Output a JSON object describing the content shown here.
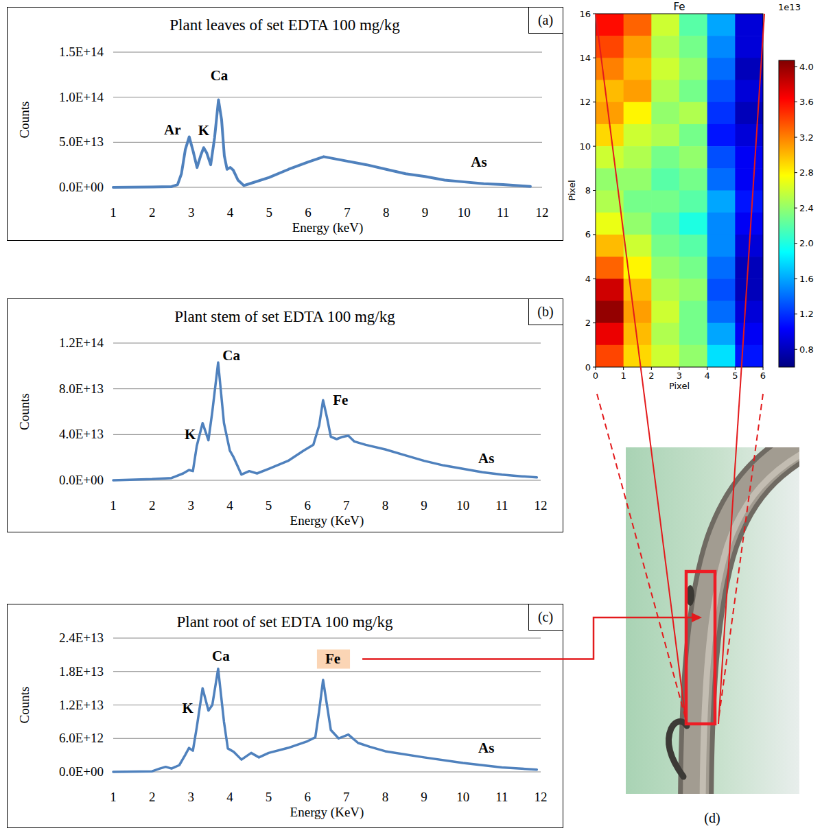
{
  "chart_data": [
    {
      "type": "line",
      "title": "Plant leaves of set EDTA 100 mg/kg",
      "panel": "(a)",
      "x_label": "Energy (keV)",
      "y_label": "Counts",
      "color": "#4f81bd",
      "grid": true,
      "x": [
        1,
        1.5,
        2,
        2.5,
        2.65,
        2.75,
        2.85,
        2.95,
        3.05,
        3.15,
        3.25,
        3.32,
        3.4,
        3.5,
        3.6,
        3.7,
        3.78,
        3.85,
        3.92,
        4.0,
        4.08,
        4.2,
        4.35,
        4.5,
        5,
        5.5,
        6,
        6.4,
        7,
        7.5,
        8,
        8.5,
        9,
        9.5,
        10,
        10.5,
        11,
        11.5,
        11.7
      ],
      "values": [
        0,
        100000000000.0,
        300000000000.0,
        800000000000.0,
        3000000000000.0,
        15000000000000.0,
        42000000000000.0,
        56000000000000.0,
        40000000000000.0,
        22000000000000.0,
        36000000000000.0,
        44000000000000.0,
        38000000000000.0,
        25000000000000.0,
        55000000000000.0,
        97000000000000.0,
        75000000000000.0,
        35000000000000.0,
        20000000000000.0,
        22000000000000.0,
        19000000000000.0,
        8000000000000.0,
        2000000000000.0,
        4000000000000.0,
        11000000000000.0,
        20000000000000.0,
        28000000000000.0,
        34000000000000.0,
        29000000000000.0,
        25000000000000.0,
        20000000000000.0,
        15000000000000.0,
        12000000000000.0,
        8000000000000.0,
        6000000000000.0,
        4000000000000.0,
        3000000000000.0,
        1500000000000.0,
        1000000000000.0
      ],
      "xlim": [
        1,
        12
      ],
      "xticks": [
        1,
        2,
        3,
        4,
        5,
        6,
        7,
        8,
        9,
        10,
        11,
        12
      ],
      "ylim": [
        0,
        150000000000000.0
      ],
      "yticks": [
        {
          "value": 0,
          "label": "0.0E+00"
        },
        {
          "value": 50000000000000.0,
          "label": "5.0E+13"
        },
        {
          "value": 100000000000000.0,
          "label": "1.0E+14"
        },
        {
          "value": 150000000000000.0,
          "label": "1.5E+14"
        }
      ],
      "annotations": [
        {
          "text": "Ar",
          "x": 2.52,
          "y": 59000000000000.0
        },
        {
          "text": "K",
          "x": 3.32,
          "y": 58000000000000.0
        },
        {
          "text": "Ca",
          "x": 3.72,
          "y": 119000000000000.0
        },
        {
          "text": "As",
          "x": 10.38,
          "y": 23000000000000.0
        }
      ]
    },
    {
      "type": "line",
      "title": "Plant stem of set EDTA 100 mg/kg",
      "panel": "(b)",
      "x_label": "Energy (KeV)",
      "y_label": "Counts",
      "color": "#4f81bd",
      "grid": true,
      "x": [
        1,
        2,
        2.5,
        2.8,
        2.95,
        3.05,
        3.15,
        3.3,
        3.45,
        3.55,
        3.7,
        3.85,
        4.0,
        4.1,
        4.3,
        4.5,
        4.7,
        5,
        5.5,
        5.9,
        6.15,
        6.3,
        6.4,
        6.5,
        6.6,
        6.75,
        6.9,
        7.05,
        7.2,
        7.5,
        8,
        8.5,
        9,
        9.5,
        10,
        10.5,
        11,
        11.5,
        11.9
      ],
      "values": [
        0,
        1000000000000.0,
        2000000000000.0,
        6000000000000.0,
        9000000000000.0,
        8000000000000.0,
        30000000000000.0,
        50000000000000.0,
        35000000000000.0,
        60000000000000.0,
        103000000000000.0,
        50000000000000.0,
        26000000000000.0,
        20000000000000.0,
        5000000000000.0,
        8000000000000.0,
        6000000000000.0,
        10000000000000.0,
        17000000000000.0,
        26000000000000.0,
        31000000000000.0,
        48000000000000.0,
        70000000000000.0,
        55000000000000.0,
        38000000000000.0,
        36000000000000.0,
        38000000000000.0,
        39000000000000.0,
        34000000000000.0,
        31000000000000.0,
        27000000000000.0,
        22000000000000.0,
        17000000000000.0,
        13000000000000.0,
        10000000000000.0,
        7000000000000.0,
        5000000000000.0,
        3500000000000.0,
        2500000000000.0
      ],
      "xlim": [
        1,
        12
      ],
      "xticks": [
        1,
        2,
        3,
        4,
        5,
        6,
        7,
        8,
        9,
        10,
        11,
        12
      ],
      "ylim": [
        0,
        120000000000000.0
      ],
      "yticks": [
        {
          "value": 0,
          "label": "0.0E+00"
        },
        {
          "value": 40000000000000.0,
          "label": "4.0E+13"
        },
        {
          "value": 80000000000000.0,
          "label": "8.0E+13"
        },
        {
          "value": 120000000000000.0,
          "label": "1.2E+14"
        }
      ],
      "annotations": [
        {
          "text": "K",
          "x": 2.98,
          "y": 36000000000000.0
        },
        {
          "text": "Ca",
          "x": 4.04,
          "y": 105000000000000.0
        },
        {
          "text": "Fe",
          "x": 6.85,
          "y": 66000000000000.0
        },
        {
          "text": "As",
          "x": 10.6,
          "y": 15000000000000.0
        }
      ]
    },
    {
      "type": "line",
      "title": "Plant root of set EDTA 100 mg/kg",
      "panel": "(c)",
      "x_label": "Energy (KeV)",
      "y_label": "Counts",
      "color": "#4f81bd",
      "grid": true,
      "x": [
        1,
        2,
        2.2,
        2.35,
        2.5,
        2.7,
        2.85,
        2.95,
        3.05,
        3.15,
        3.3,
        3.45,
        3.55,
        3.7,
        3.85,
        3.95,
        4.1,
        4.3,
        4.55,
        4.75,
        5,
        5.5,
        6,
        6.2,
        6.3,
        6.4,
        6.5,
        6.6,
        6.8,
        7.05,
        7.3,
        7.6,
        8,
        9,
        10,
        11,
        11.9
      ],
      "values": [
        0,
        100000000000.0,
        600000000000.0,
        900000000000.0,
        600000000000.0,
        1200000000000.0,
        3000000000000.0,
        4300000000000.0,
        3800000000000.0,
        8000000000000.0,
        15000000000000.0,
        11000000000000.0,
        12000000000000.0,
        18500000000000.0,
        9000000000000.0,
        4200000000000.0,
        3600000000000.0,
        2200000000000.0,
        3400000000000.0,
        2600000000000.0,
        3400000000000.0,
        4300000000000.0,
        5500000000000.0,
        6200000000000.0,
        11000000000000.0,
        16500000000000.0,
        12000000000000.0,
        7500000000000.0,
        6000000000000.0,
        6700000000000.0,
        5200000000000.0,
        4500000000000.0,
        3700000000000.0,
        2600000000000.0,
        1600000000000.0,
        800000000000.0,
        400000000000.0
      ],
      "xlim": [
        1,
        12
      ],
      "xticks": [
        1,
        2,
        3,
        4,
        5,
        6,
        7,
        8,
        9,
        10,
        11,
        12
      ],
      "ylim": [
        0,
        24000000000000.0
      ],
      "yticks": [
        {
          "value": 0,
          "label": "0.0E+00"
        },
        {
          "value": 6000000000000.0,
          "label": "6.0E+12"
        },
        {
          "value": 12000000000000.0,
          "label": "1.2E+13"
        },
        {
          "value": 18000000000000.0,
          "label": "1.8E+13"
        },
        {
          "value": 24000000000000.0,
          "label": "2.4E+13"
        }
      ],
      "annotations": [
        {
          "text": "K",
          "x": 2.92,
          "y": 10600000000000.0
        },
        {
          "text": "Ca",
          "x": 3.77,
          "y": 20000000000000.0
        },
        {
          "text": "Fe",
          "x": 6.65,
          "y": 19500000000000.0
        },
        {
          "text": "As",
          "x": 10.6,
          "y": 3500000000000.0
        }
      ]
    },
    {
      "type": "heatmap",
      "title": "Fe",
      "panel": "(d)",
      "x_label": "Pixel",
      "y_label": "Pixel",
      "xlim": [
        0,
        6
      ],
      "xticks": [
        0,
        1,
        2,
        3,
        4,
        5,
        6
      ],
      "ylim": [
        0,
        16
      ],
      "yticks": [
        0,
        2,
        4,
        6,
        8,
        10,
        12,
        14,
        16
      ],
      "cells": [
        [
          3.6,
          3.3,
          2.6,
          2.2,
          1.6,
          0.9
        ],
        [
          3.4,
          3.1,
          2.5,
          2.3,
          1.5,
          0.9
        ],
        [
          3.2,
          3.0,
          2.6,
          2.4,
          1.4,
          0.8
        ],
        [
          3.0,
          3.1,
          2.5,
          2.3,
          1.3,
          0.9
        ],
        [
          3.1,
          2.8,
          2.4,
          2.5,
          1.2,
          0.8
        ],
        [
          2.9,
          2.6,
          2.5,
          2.3,
          1.1,
          0.9
        ],
        [
          2.6,
          2.5,
          2.3,
          2.4,
          1.3,
          1.0
        ],
        [
          2.4,
          2.4,
          2.2,
          2.3,
          1.4,
          1.0
        ],
        [
          2.5,
          2.3,
          2.3,
          2.2,
          1.6,
          1.1
        ],
        [
          2.7,
          2.4,
          2.2,
          2.0,
          1.5,
          1.0
        ],
        [
          3.0,
          2.6,
          2.3,
          2.2,
          1.5,
          0.9
        ],
        [
          3.3,
          2.8,
          2.4,
          2.3,
          1.4,
          0.8
        ],
        [
          3.8,
          3.0,
          2.5,
          2.4,
          1.3,
          0.8
        ],
        [
          4.0,
          3.1,
          2.6,
          2.3,
          1.4,
          0.9
        ],
        [
          3.7,
          3.0,
          2.5,
          2.3,
          1.6,
          1.0
        ],
        [
          3.4,
          2.9,
          2.6,
          2.4,
          1.8,
          1.1
        ]
      ],
      "colorbar_range": [
        0.6,
        4.07
      ],
      "colorbar_ticks": [
        0.8,
        1.2,
        1.6,
        {
          "value": 2,
          "label": "2.0"
        },
        2.4,
        2.8,
        3.2,
        3.6,
        {
          "value": 4,
          "label": "4.0"
        }
      ],
      "colorbar_multiplier": "1e13"
    }
  ]
}
